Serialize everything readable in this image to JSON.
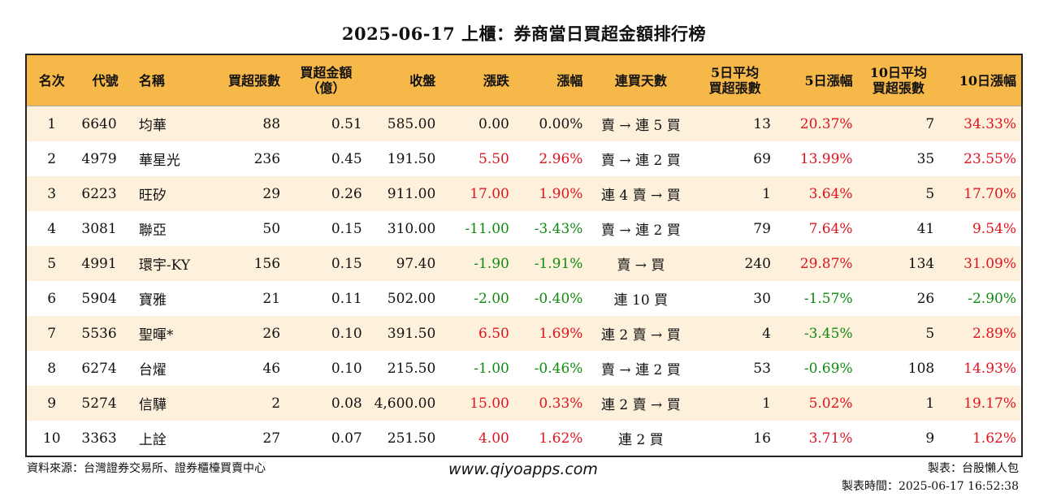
{
  "title": "2025-06-17 上櫃：券商當日買超金額排行榜",
  "table": {
    "headers": [
      {
        "line1": "名次",
        "line2": ""
      },
      {
        "line1": "代號",
        "line2": ""
      },
      {
        "line1": "名稱",
        "line2": ""
      },
      {
        "line1": "買超張數",
        "line2": ""
      },
      {
        "line1": "買超金額",
        "line2": "（億）"
      },
      {
        "line1": "收盤",
        "line2": ""
      },
      {
        "line1": "漲跌",
        "line2": ""
      },
      {
        "line1": "漲幅",
        "line2": ""
      },
      {
        "line1": "連買天數",
        "line2": ""
      },
      {
        "line1": "5日平均",
        "line2": "買超張數"
      },
      {
        "line1": "5日漲幅",
        "line2": ""
      },
      {
        "line1": "10日平均",
        "line2": "買超張數"
      },
      {
        "line1": "10日漲幅",
        "line2": ""
      }
    ],
    "rows": [
      {
        "rank": "1",
        "code": "6640",
        "name": "均華",
        "buy_lots": "88",
        "buy_amount": "0.51",
        "close": "585.00",
        "change": "0.00",
        "change_pct": "0.00%",
        "streak": "賣 → 連 5 買",
        "avg5_lots": "13",
        "pct5": "20.37%",
        "avg10_lots": "7",
        "pct10": "34.33%"
      },
      {
        "rank": "2",
        "code": "4979",
        "name": "華星光",
        "buy_lots": "236",
        "buy_amount": "0.45",
        "close": "191.50",
        "change": "5.50",
        "change_pct": "2.96%",
        "streak": "賣 → 連 2 買",
        "avg5_lots": "69",
        "pct5": "13.99%",
        "avg10_lots": "35",
        "pct10": "23.55%"
      },
      {
        "rank": "3",
        "code": "6223",
        "name": "旺矽",
        "buy_lots": "29",
        "buy_amount": "0.26",
        "close": "911.00",
        "change": "17.00",
        "change_pct": "1.90%",
        "streak": "連 4 賣 → 買",
        "avg5_lots": "1",
        "pct5": "3.64%",
        "avg10_lots": "5",
        "pct10": "17.70%"
      },
      {
        "rank": "4",
        "code": "3081",
        "name": "聯亞",
        "buy_lots": "50",
        "buy_amount": "0.15",
        "close": "310.00",
        "change": "-11.00",
        "change_pct": "-3.43%",
        "streak": "賣 → 連 2 買",
        "avg5_lots": "79",
        "pct5": "7.64%",
        "avg10_lots": "41",
        "pct10": "9.54%"
      },
      {
        "rank": "5",
        "code": "4991",
        "name": "環宇-KY",
        "buy_lots": "156",
        "buy_amount": "0.15",
        "close": "97.40",
        "change": "-1.90",
        "change_pct": "-1.91%",
        "streak": "賣 → 買",
        "avg5_lots": "240",
        "pct5": "29.87%",
        "avg10_lots": "134",
        "pct10": "31.09%"
      },
      {
        "rank": "6",
        "code": "5904",
        "name": "寶雅",
        "buy_lots": "21",
        "buy_amount": "0.11",
        "close": "502.00",
        "change": "-2.00",
        "change_pct": "-0.40%",
        "streak": "連 10 買",
        "avg5_lots": "30",
        "pct5": "-1.57%",
        "avg10_lots": "26",
        "pct10": "-2.90%"
      },
      {
        "rank": "7",
        "code": "5536",
        "name": "聖暉*",
        "buy_lots": "26",
        "buy_amount": "0.10",
        "close": "391.50",
        "change": "6.50",
        "change_pct": "1.69%",
        "streak": "連 2 賣 → 買",
        "avg5_lots": "4",
        "pct5": "-3.45%",
        "avg10_lots": "5",
        "pct10": "2.89%"
      },
      {
        "rank": "8",
        "code": "6274",
        "name": "台燿",
        "buy_lots": "46",
        "buy_amount": "0.10",
        "close": "215.50",
        "change": "-1.00",
        "change_pct": "-0.46%",
        "streak": "賣 → 連 2 買",
        "avg5_lots": "53",
        "pct5": "-0.69%",
        "avg10_lots": "108",
        "pct10": "14.93%"
      },
      {
        "rank": "9",
        "code": "5274",
        "name": "信驊",
        "buy_lots": "2",
        "buy_amount": "0.08",
        "close": "4,600.00",
        "change": "15.00",
        "change_pct": "0.33%",
        "streak": "連 2 賣 → 買",
        "avg5_lots": "1",
        "pct5": "5.02%",
        "avg10_lots": "1",
        "pct10": "19.17%"
      },
      {
        "rank": "10",
        "code": "3363",
        "name": "上詮",
        "buy_lots": "27",
        "buy_amount": "0.07",
        "close": "251.50",
        "change": "4.00",
        "change_pct": "1.62%",
        "streak": "連 2 買",
        "avg5_lots": "16",
        "pct5": "3.71%",
        "avg10_lots": "9",
        "pct10": "1.62%"
      }
    ]
  },
  "footer": {
    "source": "資料來源：台灣證券交易所、證券櫃檯買賣中心",
    "website": "www.qiyoapps.com",
    "maker": "製表：台股懶人包",
    "made_time": "製表時間：2025-06-17 16:52:38"
  },
  "colors": {
    "header_bg": "#f7b84a",
    "odd_row_bg": "#fdf1dc",
    "positive": "#e0131f",
    "negative": "#118a11"
  }
}
